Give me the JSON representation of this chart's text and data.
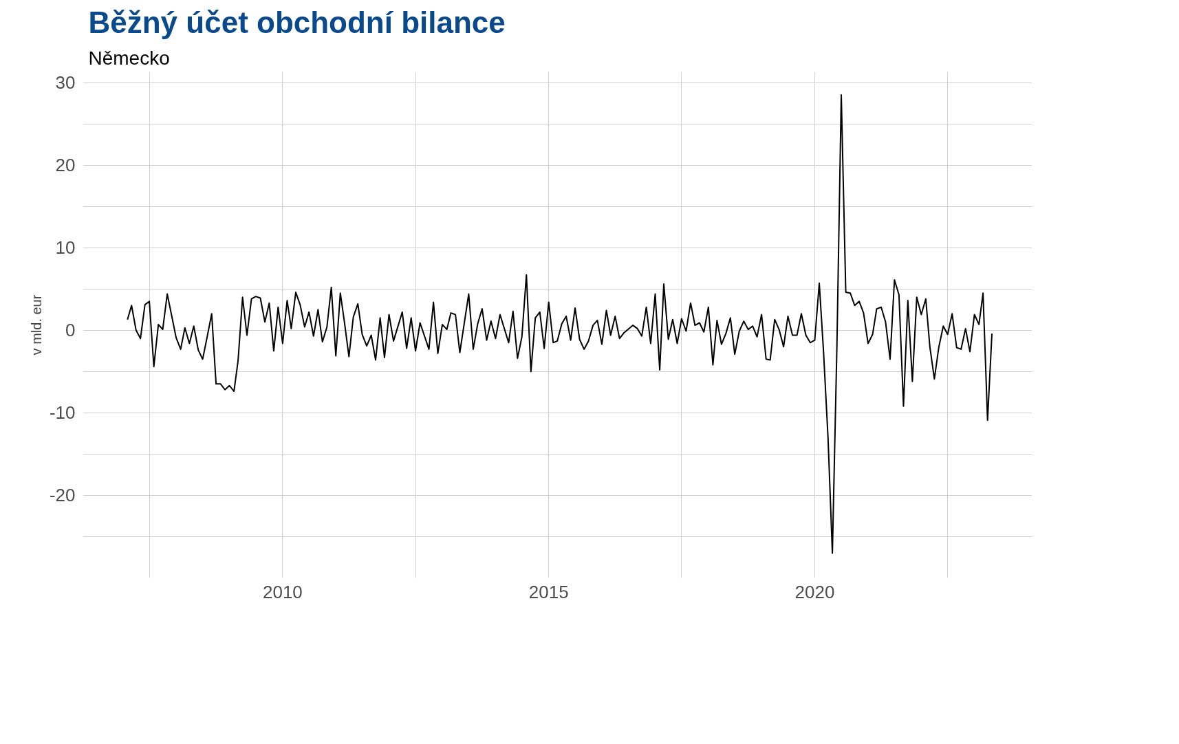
{
  "chart_data": {
    "type": "line",
    "title": "Běžný účet obchodní bilance",
    "subtitle": "Německo",
    "ylabel": "v mld. eur",
    "x": [
      "2007-02",
      "2007-03",
      "2007-04",
      "2007-05",
      "2007-06",
      "2007-07",
      "2007-08",
      "2007-09",
      "2007-10",
      "2007-11",
      "2007-12",
      "2008-01",
      "2008-02",
      "2008-03",
      "2008-04",
      "2008-05",
      "2008-06",
      "2008-07",
      "2008-08",
      "2008-09",
      "2008-10",
      "2008-11",
      "2008-12",
      "2009-01",
      "2009-02",
      "2009-03",
      "2009-04",
      "2009-05",
      "2009-06",
      "2009-07",
      "2009-08",
      "2009-09",
      "2009-10",
      "2009-11",
      "2009-12",
      "2010-01",
      "2010-02",
      "2010-03",
      "2010-04",
      "2010-05",
      "2010-06",
      "2010-07",
      "2010-08",
      "2010-09",
      "2010-10",
      "2010-11",
      "2010-12",
      "2011-01",
      "2011-02",
      "2011-03",
      "2011-04",
      "2011-05",
      "2011-06",
      "2011-07",
      "2011-08",
      "2011-09",
      "2011-10",
      "2011-11",
      "2011-12",
      "2012-01",
      "2012-02",
      "2012-04",
      "2012-05",
      "2012-06",
      "2012-07",
      "2012-08",
      "2012-10",
      "2012-11",
      "2012-12",
      "2013-01",
      "2013-02",
      "2013-03",
      "2013-04",
      "2013-05",
      "2013-07",
      "2013-08",
      "2013-09",
      "2013-10",
      "2013-11",
      "2013-12",
      "2014-01",
      "2014-02",
      "2014-04",
      "2014-05",
      "2014-06",
      "2014-07",
      "2014-08",
      "2014-09",
      "2014-10",
      "2014-11",
      "2014-12",
      "2015-01",
      "2015-02",
      "2015-03",
      "2015-04",
      "2015-05",
      "2015-06",
      "2015-07",
      "2015-08",
      "2015-09",
      "2015-10",
      "2015-11",
      "2015-12",
      "2016-01",
      "2016-02",
      "2016-03",
      "2016-04",
      "2016-05",
      "2016-06",
      "2016-08",
      "2016-09",
      "2016-10",
      "2016-11",
      "2016-12",
      "2017-01",
      "2017-02",
      "2017-03",
      "2017-04",
      "2017-05",
      "2017-06",
      "2017-07",
      "2017-08",
      "2017-09",
      "2017-10",
      "2017-11",
      "2017-12",
      "2018-01",
      "2018-02",
      "2018-03",
      "2018-04",
      "2018-05",
      "2018-06",
      "2018-07",
      "2018-08",
      "2018-09",
      "2018-10",
      "2018-11",
      "2018-12",
      "2019-01",
      "2019-02",
      "2019-03",
      "2019-04",
      "2019-05",
      "2019-06",
      "2019-07",
      "2019-08",
      "2019-09",
      "2019-10",
      "2019-11",
      "2019-12",
      "2020-01",
      "2020-02",
      "2020-03",
      "2020-04",
      "2020-05",
      "2020-06",
      "2020-07",
      "2020-08",
      "2020-09",
      "2020-10",
      "2020-11",
      "2020-12",
      "2021-01",
      "2021-02",
      "2021-03",
      "2021-04",
      "2021-05",
      "2021-06",
      "2021-07",
      "2021-08",
      "2021-09",
      "2021-10",
      "2021-11",
      "2021-12",
      "2022-01",
      "2022-02",
      "2022-03",
      "2022-04",
      "2022-05",
      "2022-06",
      "2022-07",
      "2022-08",
      "2022-09",
      "2022-10",
      "2022-11",
      "2022-12",
      "2023-01",
      "2023-02",
      "2023-03",
      "2023-04",
      "2023-05"
    ],
    "series": [
      {
        "color": "#000000",
        "values": [
          1.3,
          3.0,
          0,
          -1,
          3.1,
          3.5,
          -4.4,
          0.7,
          0.1,
          4.4,
          1.8,
          -0.9,
          -2.3,
          0.3,
          -1.6,
          0.5,
          -2.4,
          -3.5,
          -0.8,
          2.0,
          -6.5,
          -6.5,
          -7.2,
          -6.7,
          -7.4,
          -3.7,
          4.0,
          -0.6,
          3.8,
          4.1,
          3.9,
          1.0,
          3.3,
          -2.5,
          2.8,
          -1.6,
          3.6,
          0.2,
          4.6,
          3.1,
          0.4,
          2.2,
          -0.7,
          2.5,
          -1.4,
          0.4,
          5.2,
          -3.1,
          4.5,
          1.0,
          -3.2,
          1.6,
          3.2,
          -0.5,
          -1.9,
          -0.6,
          -3.6,
          1.5,
          -3.3,
          1.9,
          -1.3,
          2.2,
          -2.2,
          1.5,
          -2.5,
          0.9,
          -2.3,
          3.4,
          -2.8,
          0.7,
          0.1,
          2.1,
          1.9,
          -2.7,
          4.4,
          -2.3,
          0.8,
          2.6,
          -1.2,
          1.1,
          -1.0,
          1.9,
          -1.5,
          2.3,
          -3.4,
          -0.8,
          6.7,
          -5.0,
          1.5,
          2.2,
          -2.2,
          3.4,
          -1.5,
          -1.3,
          0.8,
          1.7,
          -1.2,
          2.7,
          -1.1,
          -2.3,
          -1.3,
          0.6,
          1.2,
          -1.7,
          2.4,
          -0.6,
          1.7,
          -1.0,
          -0.3,
          0.6,
          0.2,
          -0.7,
          2.8,
          -1.6,
          4.4,
          -4.8,
          5.6,
          -1.1,
          1.3,
          -1.6,
          1.4,
          -0.1,
          3.3,
          0.6,
          0.9,
          -0.2,
          2.8,
          -4.2,
          1.2,
          -1.7,
          -0.4,
          1.5,
          -2.9,
          -0.1,
          1.1,
          0.1,
          0.5,
          -0.8,
          1.9,
          -3.5,
          -3.6,
          1.3,
          0.1,
          -2.0,
          1.7,
          -0.6,
          -0.6,
          2.0,
          -0.6,
          -1.5,
          -1.2,
          5.7,
          -2.5,
          -13,
          -27,
          -2,
          28.5,
          4.6,
          4.5,
          3.0,
          3.5,
          2.1,
          -1.6,
          -0.5,
          2.6,
          2.8,
          1.0,
          -3.5,
          6.1,
          4.3,
          -9.2,
          3.6,
          -6.2,
          4.0,
          1.9,
          3.8,
          -2.0,
          -5.9,
          -2.1,
          0.5,
          -0.5,
          2.0,
          -2.1,
          -2.3,
          0.2,
          -2.6,
          1.9,
          0.7,
          4.5,
          -10.9,
          -0.4
        ]
      }
    ],
    "xlim": [
      "2006-04",
      "2024-02"
    ],
    "xticks": [
      {
        "value": "2007-07",
        "label": null
      },
      {
        "value": "2010",
        "label": "2010"
      },
      {
        "value": "2012-07",
        "label": null
      },
      {
        "value": "2015",
        "label": "2015"
      },
      {
        "value": "2017-07",
        "label": null
      },
      {
        "value": "2020",
        "label": "2020"
      },
      {
        "value": "2022-07",
        "label": null
      }
    ],
    "ylim": [
      -30,
      31.3
    ],
    "yticks": [
      {
        "value": -25,
        "label": null
      },
      -20,
      {
        "value": -15,
        "label": null
      },
      -10,
      {
        "value": -5,
        "label": null
      },
      0,
      {
        "value": 5,
        "label": null
      },
      10,
      {
        "value": 15,
        "label": null
      },
      20,
      {
        "value": 25,
        "label": null
      },
      30
    ],
    "grid": true,
    "line_style": "solid"
  }
}
